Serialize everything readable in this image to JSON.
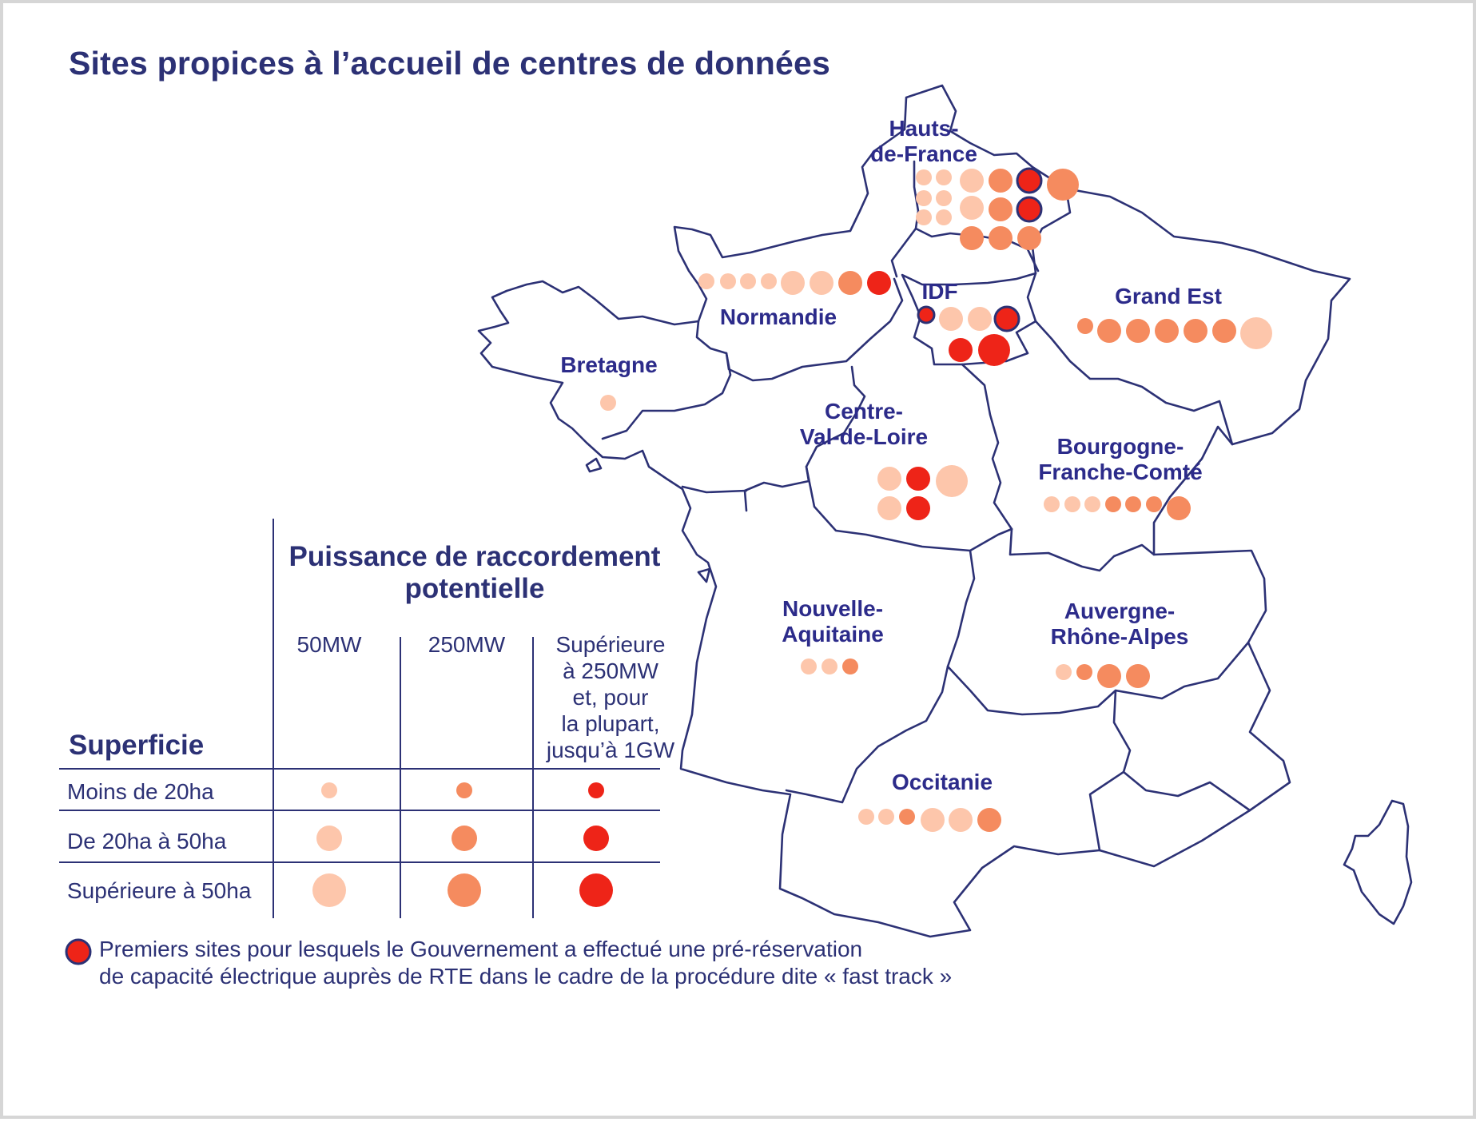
{
  "title": "Sites propices à l’accueil de centres de données",
  "colors": {
    "map_stroke": "#2c3175",
    "small_power": "#fdc6ab",
    "medium_power": "#f58b5f",
    "high_power": "#ee2418",
    "fast_track_border": "#2c3175",
    "text": "#2c3175"
  },
  "regions": [
    {
      "name": "hauts-de-france",
      "label_lines": [
        "Hauts-",
        "de-France"
      ]
    },
    {
      "name": "normandie",
      "label_lines": [
        "Normandie"
      ]
    },
    {
      "name": "idf",
      "label_lines": [
        "IDF"
      ]
    },
    {
      "name": "grand-est",
      "label_lines": [
        "Grand Est"
      ]
    },
    {
      "name": "bretagne",
      "label_lines": [
        "Bretagne"
      ]
    },
    {
      "name": "centre-val-de-loire",
      "label_lines": [
        "Centre-",
        "Val-de-Loire"
      ]
    },
    {
      "name": "bourgogne-franche-comte",
      "label_lines": [
        "Bourgogne-",
        "Franche-Comté"
      ]
    },
    {
      "name": "nouvelle-aquitaine",
      "label_lines": [
        "Nouvelle-",
        "Aquitaine"
      ]
    },
    {
      "name": "auvergne-rhone-alpes",
      "label_lines": [
        "Auvergne-",
        "Rhône-Alpes"
      ]
    },
    {
      "name": "occitanie",
      "label_lines": [
        "Occitanie"
      ]
    }
  ],
  "legend": {
    "power_heading_lines": [
      "Puissance de raccordement",
      "potentielle"
    ],
    "power_columns": [
      {
        "lines": [
          "50MW"
        ]
      },
      {
        "lines": [
          "250MW"
        ]
      },
      {
        "lines": [
          "Supérieure",
          "à 250MW",
          "et, pour",
          "la plupart,",
          "jusqu’à 1GW"
        ]
      }
    ],
    "area_heading": "Superficie",
    "area_rows": [
      "Moins de 20ha",
      "De 20ha à 50ha",
      "Supérieure à 50ha"
    ],
    "fast_track_lines": [
      "Premiers sites pour lesquels le Gouvernement a effectué une pré-réservation",
      "de capacité électrique auprès de RTE dans le cadre de la procédure dite « fast track »"
    ]
  }
}
